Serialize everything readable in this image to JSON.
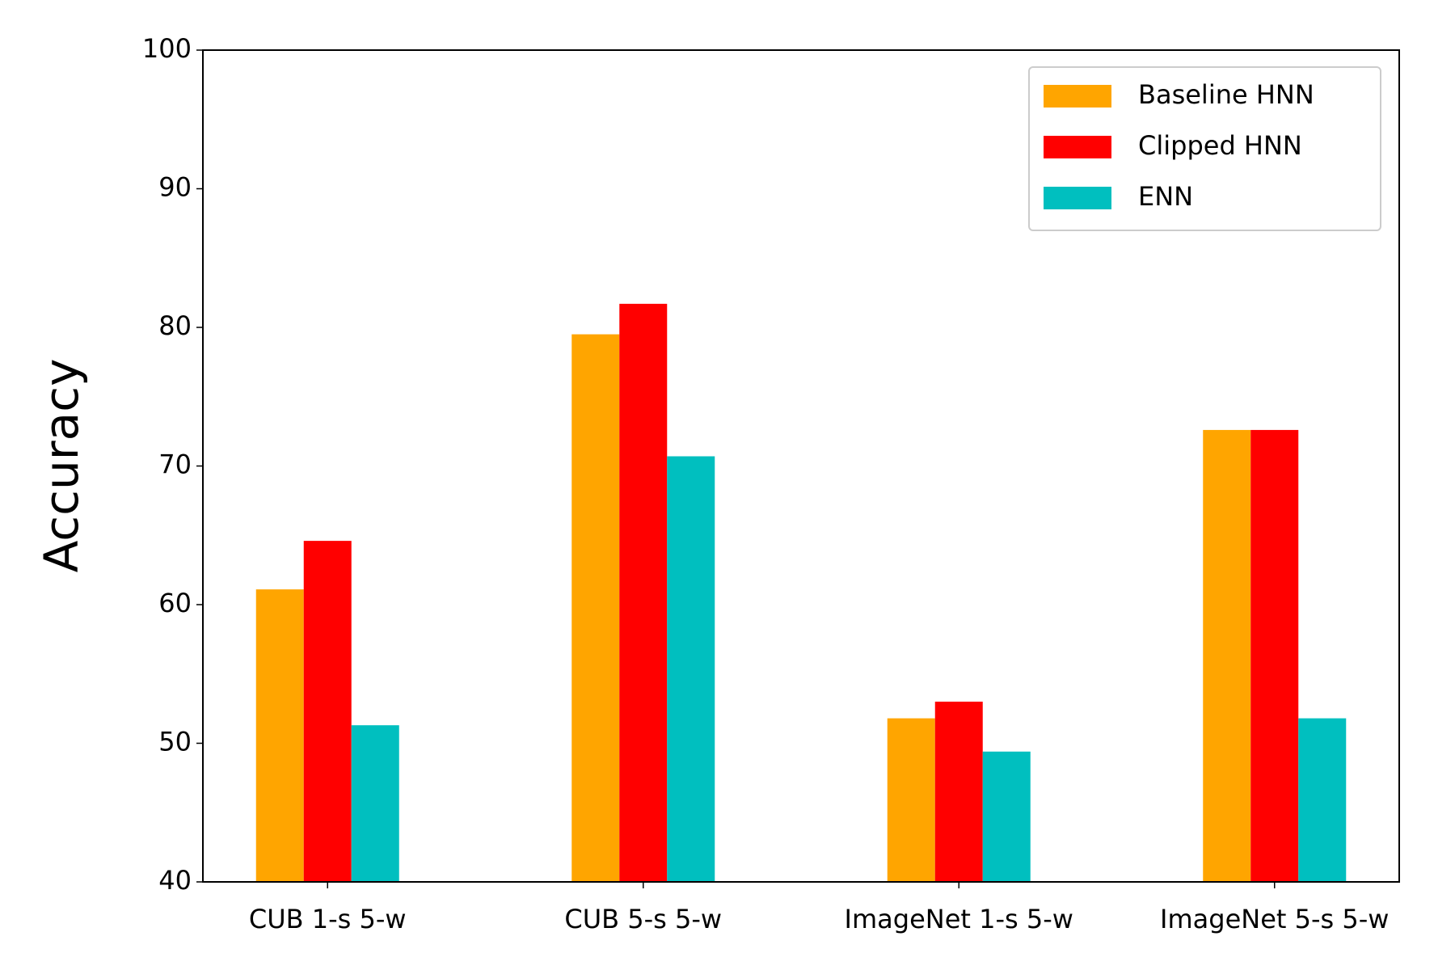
{
  "chart_data": {
    "type": "bar",
    "ylabel": "Accuracy",
    "categories": [
      "CUB 1-s 5-w",
      "CUB 5-s 5-w",
      "ImageNet 1-s 5-w",
      "ImageNet 5-s 5-w"
    ],
    "series": [
      {
        "name": "Baseline HNN",
        "color": "#ffa500",
        "values": [
          61.1,
          79.5,
          51.8,
          72.6
        ]
      },
      {
        "name": "Clipped HNN",
        "color": "#ff0000",
        "values": [
          64.6,
          81.7,
          53.0,
          72.6
        ]
      },
      {
        "name": "ENN",
        "color": "#00bfbf",
        "values": [
          51.3,
          70.7,
          49.4,
          51.8
        ]
      }
    ],
    "ylim": [
      40,
      100
    ],
    "yticks": [
      40,
      50,
      60,
      70,
      80,
      90,
      100
    ],
    "legend": "upper right"
  }
}
